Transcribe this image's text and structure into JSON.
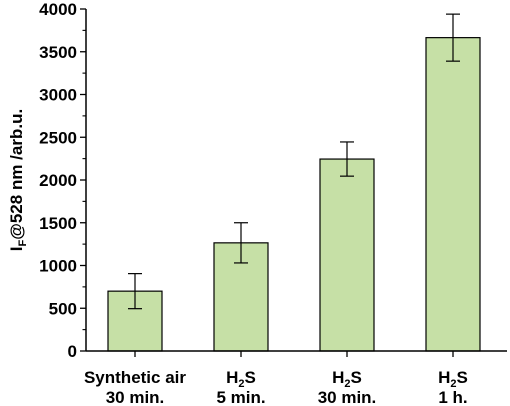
{
  "chart_data": {
    "type": "bar",
    "categories": [
      {
        "line1": "Synthetic air",
        "line1_sub": "",
        "line1_tail": "",
        "line2": "30 min."
      },
      {
        "line1": "H",
        "line1_sub": "2",
        "line1_tail": "S",
        "line2": "5 min."
      },
      {
        "line1": "H",
        "line1_sub": "2",
        "line1_tail": "S",
        "line2": "30 min."
      },
      {
        "line1": "H",
        "line1_sub": "2",
        "line1_tail": "S",
        "line2": "1 h."
      }
    ],
    "values": [
      700,
      1265,
      2245,
      3665
    ],
    "errors": [
      205,
      235,
      200,
      275
    ],
    "ylabel": {
      "main": "I",
      "sub": "F",
      "rest": "@528 nm /arb.u."
    },
    "xlabel": "",
    "ylim": [
      0,
      4000
    ],
    "yticks": [
      0,
      500,
      1000,
      1500,
      2000,
      2500,
      3000,
      3500,
      4000
    ],
    "grid": false,
    "legend": "none",
    "colors": {
      "bar_fill": "#c6e0a6",
      "bar_stroke": "#000000",
      "axis": "#000000",
      "error_bar": "#000000"
    }
  }
}
